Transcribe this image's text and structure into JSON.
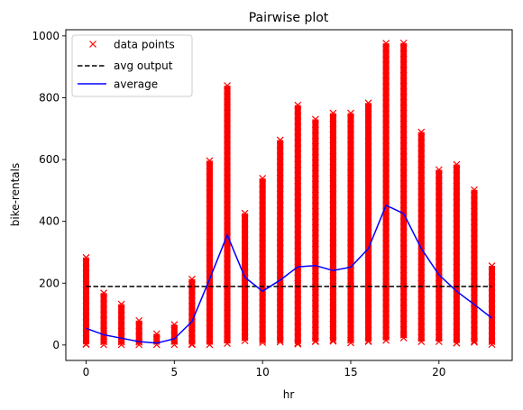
{
  "chart_data": {
    "type": "scatter",
    "title": "Pairwise plot",
    "xlabel": "hr",
    "ylabel": "bike-rentals",
    "xlim": [
      -1.15,
      24.15
    ],
    "ylim": [
      -50,
      1020
    ],
    "xticks": [
      0,
      5,
      10,
      15,
      20
    ],
    "yticks": [
      0,
      200,
      400,
      600,
      800,
      1000
    ],
    "grid": false,
    "legend_position": "top-left",
    "colors": {
      "points": "#ff0000",
      "avg_output": "#000000",
      "average": "#0000ff"
    },
    "legend": [
      {
        "label": "data points",
        "marker": "x",
        "color": "#ff0000"
      },
      {
        "label": "avg output",
        "style": "dashed",
        "color": "#000000"
      },
      {
        "label": "average",
        "style": "solid",
        "color": "#0000ff"
      }
    ],
    "point_ranges": [
      {
        "hr": 0,
        "min": 2,
        "max": 283
      },
      {
        "hr": 1,
        "min": 1,
        "max": 168
      },
      {
        "hr": 2,
        "min": 1,
        "max": 132
      },
      {
        "hr": 3,
        "min": 1,
        "max": 79
      },
      {
        "hr": 4,
        "min": 1,
        "max": 36
      },
      {
        "hr": 5,
        "min": 1,
        "max": 66
      },
      {
        "hr": 6,
        "min": 1,
        "max": 213
      },
      {
        "hr": 7,
        "min": 1,
        "max": 596
      },
      {
        "hr": 8,
        "min": 5,
        "max": 839
      },
      {
        "hr": 9,
        "min": 14,
        "max": 426
      },
      {
        "hr": 10,
        "min": 8,
        "max": 539
      },
      {
        "hr": 11,
        "min": 10,
        "max": 663
      },
      {
        "hr": 12,
        "min": 3,
        "max": 776
      },
      {
        "hr": 13,
        "min": 11,
        "max": 730
      },
      {
        "hr": 14,
        "min": 12,
        "max": 750
      },
      {
        "hr": 15,
        "min": 7,
        "max": 750
      },
      {
        "hr": 16,
        "min": 11,
        "max": 783
      },
      {
        "hr": 17,
        "min": 15,
        "max": 976
      },
      {
        "hr": 18,
        "min": 23,
        "max": 977
      },
      {
        "hr": 19,
        "min": 11,
        "max": 689
      },
      {
        "hr": 20,
        "min": 11,
        "max": 567
      },
      {
        "hr": 21,
        "min": 6,
        "max": 584
      },
      {
        "hr": 22,
        "min": 9,
        "max": 502
      },
      {
        "hr": 23,
        "min": 2,
        "max": 256
      }
    ],
    "avg_output": 189.5,
    "average": {
      "x": [
        0,
        1,
        2,
        3,
        4,
        5,
        6,
        7,
        8,
        9,
        10,
        11,
        12,
        13,
        14,
        15,
        16,
        17,
        18,
        19,
        20,
        21,
        22,
        23
      ],
      "y": [
        54,
        33,
        22,
        11,
        6,
        20,
        76,
        213,
        356,
        219,
        174,
        210,
        253,
        257,
        241,
        252,
        312,
        452,
        425,
        312,
        227,
        174,
        131,
        87
      ]
    }
  }
}
